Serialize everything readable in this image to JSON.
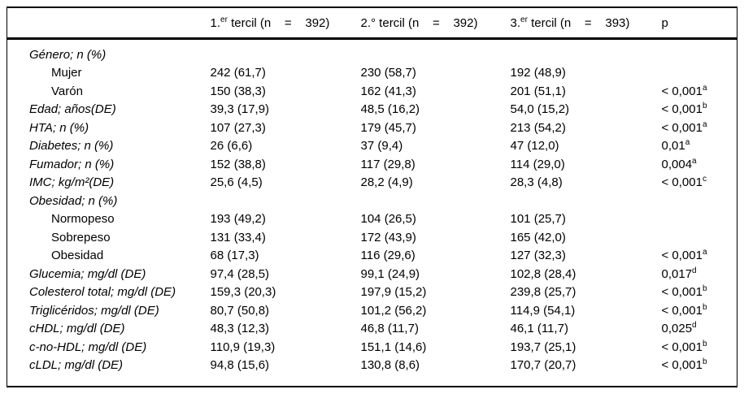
{
  "table": {
    "header": {
      "t1": {
        "pre": "1.",
        "sup": "er",
        "rest": " tercil (n    =    392)"
      },
      "t2": {
        "pre": "2.",
        "sup": "",
        "rest": "° tercil (n    =    392)"
      },
      "t3": {
        "pre": "3.",
        "sup": "er",
        "rest": " tercil (n    =    393)"
      },
      "p_label": "p"
    },
    "rows": [
      {
        "label": "Género; n (%)",
        "style": "main",
        "c1": "",
        "c2": "",
        "c3": "",
        "p": "",
        "psup": ""
      },
      {
        "label": "Mujer",
        "style": "sub",
        "c1": "242 (61,7)",
        "c2": "230 (58,7)",
        "c3": "192 (48,9)",
        "p": "",
        "psup": ""
      },
      {
        "label": "Varón",
        "style": "sub",
        "c1": "150 (38,3)",
        "c2": "162 (41,3)",
        "c3": "201 (51,1)",
        "p": "< 0,001",
        "psup": "a"
      },
      {
        "label": "Edad; años(DE)",
        "style": "main",
        "c1": "39,3 (17,9)",
        "c2": "48,5 (16,2)",
        "c3": "54,0 (15,2)",
        "p": "< 0,001",
        "psup": "b"
      },
      {
        "label": "HTA; n (%)",
        "style": "main",
        "c1": "107 (27,3)",
        "c2": "179 (45,7)",
        "c3": "213 (54,2)",
        "p": "< 0,001",
        "psup": "a"
      },
      {
        "label": "Diabetes; n (%)",
        "style": "main",
        "c1": "26 (6,6)",
        "c2": "37 (9,4)",
        "c3": "47 (12,0)",
        "p": "0,01",
        "psup": "a"
      },
      {
        "label": "Fumador; n (%)",
        "style": "main",
        "c1": "152 (38,8)",
        "c2": "117 (29,8)",
        "c3": "114 (29,0)",
        "p": "0,004",
        "psup": "a"
      },
      {
        "label": "IMC; kg/m²(DE)",
        "style": "main",
        "c1": "25,6 (4,5)",
        "c2": "28,2 (4,9)",
        "c3": "28,3 (4,8)",
        "p": "< 0,001",
        "psup": "c"
      },
      {
        "label": "Obesidad; n (%)",
        "style": "main",
        "c1": "",
        "c2": "",
        "c3": "",
        "p": "",
        "psup": ""
      },
      {
        "label": "Normopeso",
        "style": "sub",
        "c1": "193 (49,2)",
        "c2": "104 (26,5)",
        "c3": "101 (25,7)",
        "p": "",
        "psup": ""
      },
      {
        "label": "Sobrepeso",
        "style": "sub",
        "c1": "131 (33,4)",
        "c2": "172 (43,9)",
        "c3": "165 (42,0)",
        "p": "",
        "psup": ""
      },
      {
        "label": "Obesidad",
        "style": "sub",
        "c1": "68 (17,3)",
        "c2": "116 (29,6)",
        "c3": "127 (32,3)",
        "p": "< 0,001",
        "psup": "a"
      },
      {
        "label": "Glucemia; mg/dl (DE)",
        "style": "main",
        "c1": "97,4 (28,5)",
        "c2": "99,1 (24,9)",
        "c3": "102,8 (28,4)",
        "p": "0,017",
        "psup": "d"
      },
      {
        "label": "Colesterol total; mg/dl (DE)",
        "style": "main",
        "c1": "159,3 (20,3)",
        "c2": "197,9 (15,2)",
        "c3": "239,8 (25,7)",
        "p": "< 0,001",
        "psup": "b"
      },
      {
        "label": "Triglicéridos; mg/dl (DE)",
        "style": "main",
        "c1": "80,7 (50,8)",
        "c2": "101,2 (56,2)",
        "c3": "114,9 (54,1)",
        "p": "< 0,001",
        "psup": "b"
      },
      {
        "label": "cHDL; mg/dl (DE)",
        "style": "main",
        "c1": "48,3 (12,3)",
        "c2": "46,8 (11,7)",
        "c3": "46,1 (11,7)",
        "p": "0,025",
        "psup": "d"
      },
      {
        "label": "c-no-HDL; mg/dl (DE)",
        "style": "main",
        "c1": "110,9 (19,3)",
        "c2": "151,1 (14,6)",
        "c3": "193,7 (25,1)",
        "p": "< 0,001",
        "psup": "b"
      },
      {
        "label": "cLDL; mg/dl (DE)",
        "style": "main",
        "c1": "94,8 (15,6)",
        "c2": "130,8 (8,6)",
        "c3": "170,7 (20,7)",
        "p": "< 0,001",
        "psup": "b"
      }
    ]
  }
}
